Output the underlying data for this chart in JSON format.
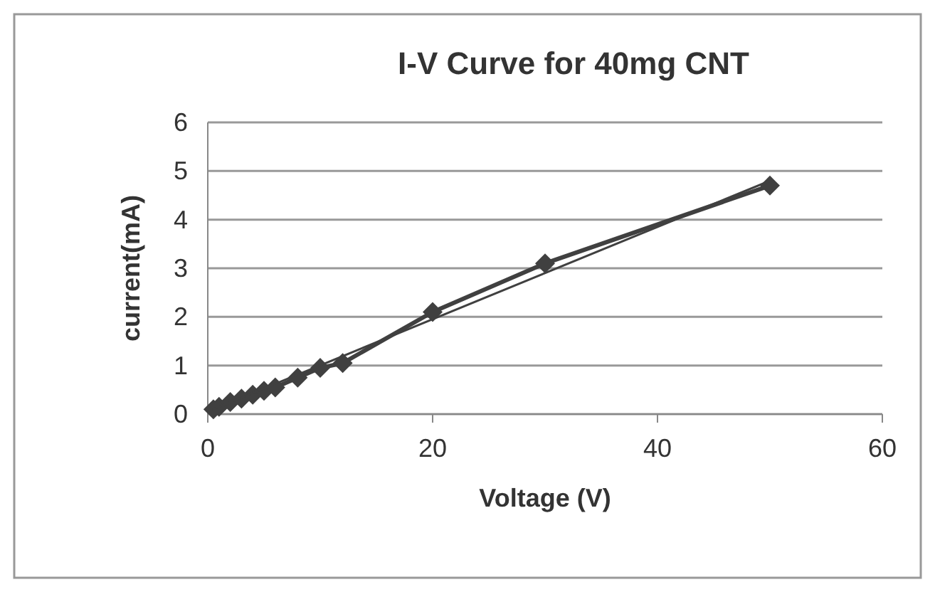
{
  "chart_data": {
    "type": "line",
    "title": "I-V Curve for 40mg CNT",
    "xlabel": "Voltage (V)",
    "ylabel": "current(mA)",
    "xlim": [
      0,
      60
    ],
    "xticks": [
      0,
      20,
      40,
      60
    ],
    "ylim": [
      0,
      6
    ],
    "yticks": [
      0,
      1,
      2,
      3,
      4,
      5,
      6
    ],
    "grid": "y",
    "series": [
      {
        "color": "#404040",
        "marker": "diamond",
        "x": [
          0.5,
          1,
          2,
          3,
          4,
          5,
          6,
          8,
          10,
          12,
          20,
          30,
          50
        ],
        "values": [
          0.1,
          0.15,
          0.25,
          0.32,
          0.4,
          0.48,
          0.55,
          0.75,
          0.95,
          1.05,
          2.1,
          3.1,
          4.7
        ]
      },
      {
        "color": "#404040",
        "marker": "none",
        "x": [
          0.5,
          50
        ],
        "values": [
          0.1,
          4.8
        ]
      }
    ]
  }
}
